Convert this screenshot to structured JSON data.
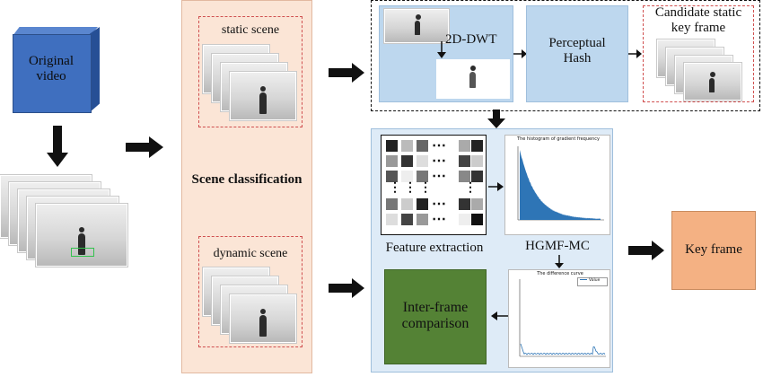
{
  "original_video": {
    "label": "Original\nvideo"
  },
  "scene_panel": {
    "static_label": "static scene",
    "title": "Scene classification",
    "dynamic_label": "dynamic scene"
  },
  "top_pipeline": {
    "dwt_label": "2D-DWT",
    "hash_label": "Perceptual\nHash",
    "candidate_label": "Candidate static\nkey frame"
  },
  "feature_panel": {
    "feature_label": "Feature extraction",
    "hgmf_label": "HGMF-MC",
    "comparison_label": "Inter-frame\ncomparison",
    "grid_dots": "⋯",
    "grid_vdots": "⋮",
    "histogram_title": "The histogram of gradient frequency",
    "diff_title": "The difference curve",
    "diff_legend": "Value"
  },
  "output": {
    "keyframe_label": "Key frame"
  },
  "colors": {
    "cube_blue": "#3f6fbf",
    "scene_panel": "#fbe5d6",
    "pipeline_blue": "#bdd7ee",
    "feature_panel": "#deebf7",
    "key_frame": "#f4b183",
    "comparison_green": "#548235",
    "histogram_bar": "#2e75b6"
  },
  "icons": {
    "arrow": "black-block-arrow",
    "line_arrow": "thin-arrow"
  }
}
